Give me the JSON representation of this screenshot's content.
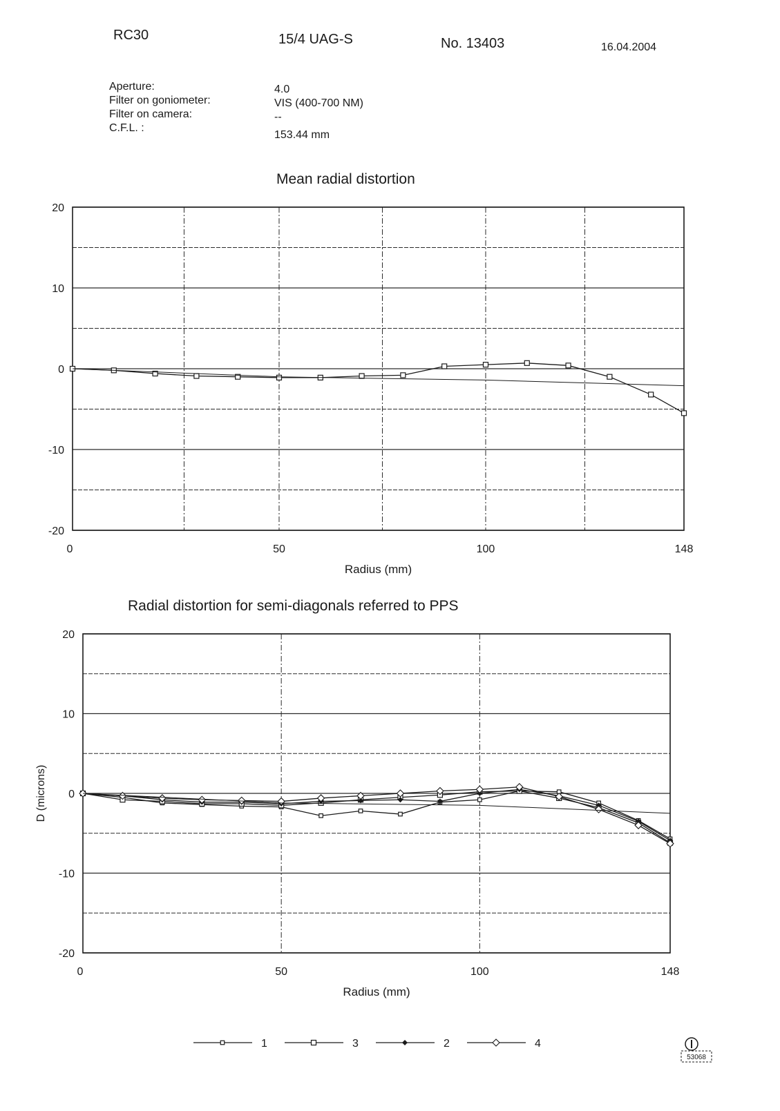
{
  "header": {
    "camera": "RC30",
    "lens": "15/4 UAG-S",
    "serial": "No. 13403",
    "date": "16.04.2004"
  },
  "meta": [
    {
      "label": "Aperture:",
      "value": "4.0"
    },
    {
      "label": "Filter on goniometer:",
      "value": "VIS (400-700 NM)"
    },
    {
      "label": "Filter on camera:",
      "value": "--"
    },
    {
      "label": "C.F.L. :",
      "value": "153.44  mm"
    }
  ],
  "stamp_text": "53068",
  "colors": {
    "ink": "#1a1a1a",
    "grid": "#2a2a2a",
    "paper": "#ffffff"
  },
  "chart_data": [
    {
      "type": "line",
      "title": "Mean radial distortion",
      "xlabel": "Radius (mm)",
      "ylabel": "",
      "xlim": [
        0,
        148
      ],
      "ylim": [
        -20,
        20
      ],
      "xticks": [
        0,
        50,
        100,
        148
      ],
      "yticks": [
        20,
        10,
        0,
        -10,
        -20
      ],
      "grid": true,
      "series": [
        {
          "name": "",
          "marker": "square",
          "x": [
            0,
            10,
            20,
            30,
            40,
            50,
            60,
            70,
            80,
            90,
            100,
            110,
            120,
            130,
            140,
            148
          ],
          "y": [
            0,
            -0.2,
            -0.6,
            -0.9,
            -1.0,
            -1.1,
            -1.1,
            -0.9,
            -0.8,
            0.3,
            0.5,
            0.7,
            0.4,
            -1.0,
            -3.2,
            -5.5
          ]
        }
      ]
    },
    {
      "type": "line",
      "title": "Radial distortion for semi-diagonals referred to PPS",
      "xlabel": "Radius (mm)",
      "ylabel": "D (microns)",
      "xlim": [
        0,
        148
      ],
      "ylim": [
        -20,
        20
      ],
      "xticks": [
        0,
        50,
        100,
        148
      ],
      "yticks": [
        20,
        10,
        0,
        -10,
        -20
      ],
      "grid": true,
      "legend": "bottom",
      "series": [
        {
          "name": "1",
          "marker": "square-small",
          "x": [
            0,
            10,
            20,
            30,
            40,
            50,
            60,
            70,
            80,
            90,
            100,
            110,
            120,
            130,
            140,
            148
          ],
          "y": [
            0,
            -0.5,
            -1.2,
            -1.4,
            -1.6,
            -1.7,
            -2.8,
            -2.2,
            -2.6,
            -1.1,
            -0.8,
            0.3,
            0.2,
            -1.2,
            -3.4,
            -5.7
          ]
        },
        {
          "name": "3",
          "marker": "square",
          "x": [
            0,
            10,
            20,
            30,
            40,
            50,
            60,
            70,
            80,
            90,
            100,
            110,
            120,
            130,
            140,
            148
          ],
          "y": [
            0,
            -0.8,
            -1.0,
            -1.3,
            -1.3,
            -1.5,
            -1.2,
            -0.8,
            -0.5,
            -0.2,
            0.2,
            0.3,
            -0.6,
            -1.8,
            -3.7,
            -6.2
          ]
        },
        {
          "name": "2",
          "marker": "diamond-small",
          "x": [
            0,
            10,
            20,
            30,
            40,
            50,
            60,
            70,
            80,
            90,
            100,
            110,
            120,
            130,
            140,
            148
          ],
          "y": [
            0,
            -0.3,
            -0.8,
            -1.1,
            -1.1,
            -1.3,
            -1.0,
            -0.9,
            -0.8,
            -1.0,
            0.0,
            0.5,
            -0.3,
            -1.5,
            -3.5,
            -5.9
          ]
        },
        {
          "name": "4",
          "marker": "diamond",
          "x": [
            0,
            10,
            20,
            30,
            40,
            50,
            60,
            70,
            80,
            90,
            100,
            110,
            120,
            130,
            140,
            148
          ],
          "y": [
            0,
            -0.3,
            -0.6,
            -0.8,
            -0.9,
            -1.0,
            -0.6,
            -0.3,
            0.0,
            0.3,
            0.5,
            0.8,
            -0.4,
            -2.0,
            -4.0,
            -6.3
          ]
        }
      ]
    }
  ]
}
